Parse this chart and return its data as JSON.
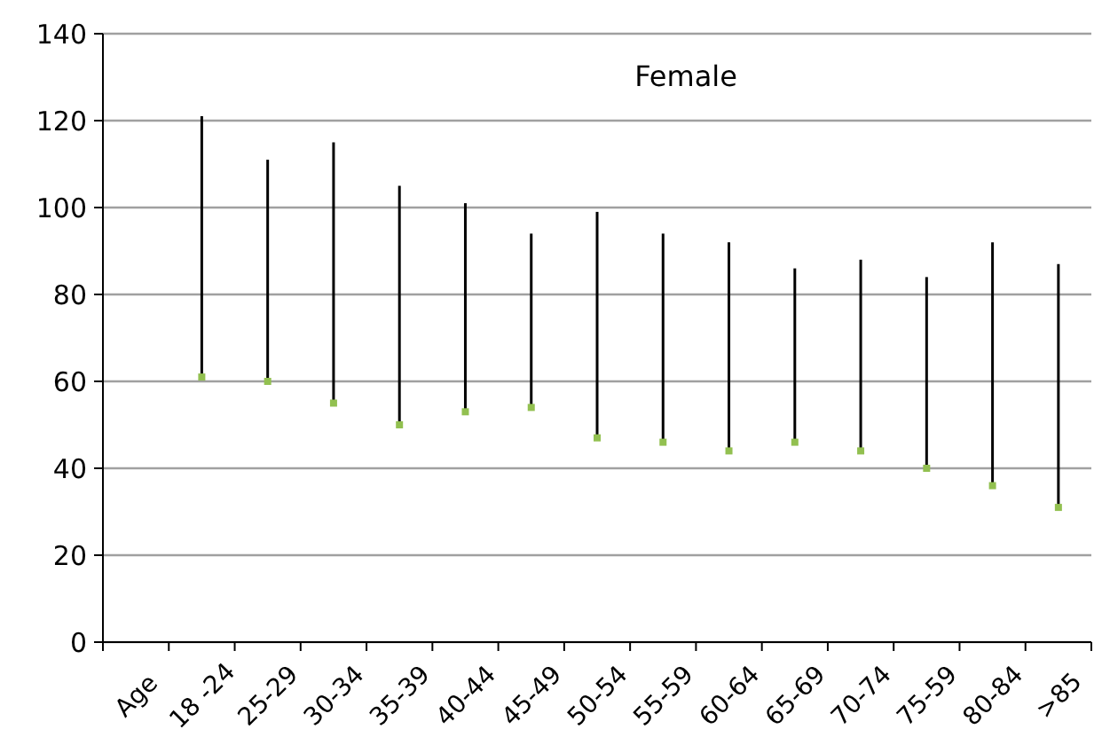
{
  "chart_data": {
    "type": "scatter",
    "title": "Female",
    "categories": [
      "Age",
      "18 -24",
      "25-29",
      "30-34",
      "35-39",
      "40-44",
      "45-49",
      "50-54",
      "55-59",
      "60-64",
      "65-69",
      "70-74",
      "75-59",
      "80-84",
      ">85"
    ],
    "values": [
      null,
      61,
      60,
      55,
      50,
      53,
      54,
      47,
      46,
      44,
      46,
      44,
      40,
      36,
      31
    ],
    "errors": [
      null,
      [
        61,
        121
      ],
      [
        60,
        111
      ],
      [
        55,
        115
      ],
      [
        50,
        105
      ],
      [
        53,
        101
      ],
      [
        54,
        94
      ],
      [
        47,
        99
      ],
      [
        46,
        94
      ],
      [
        44,
        92
      ],
      [
        46,
        86
      ],
      [
        44,
        88
      ],
      [
        40,
        84
      ],
      [
        36,
        92
      ],
      [
        31,
        87
      ]
    ],
    "color": "#92c050",
    "marker": "square",
    "ylim": [
      0,
      140
    ],
    "yticks": [
      0,
      20,
      40,
      60,
      80,
      100,
      120,
      140
    ],
    "grid": "y"
  }
}
